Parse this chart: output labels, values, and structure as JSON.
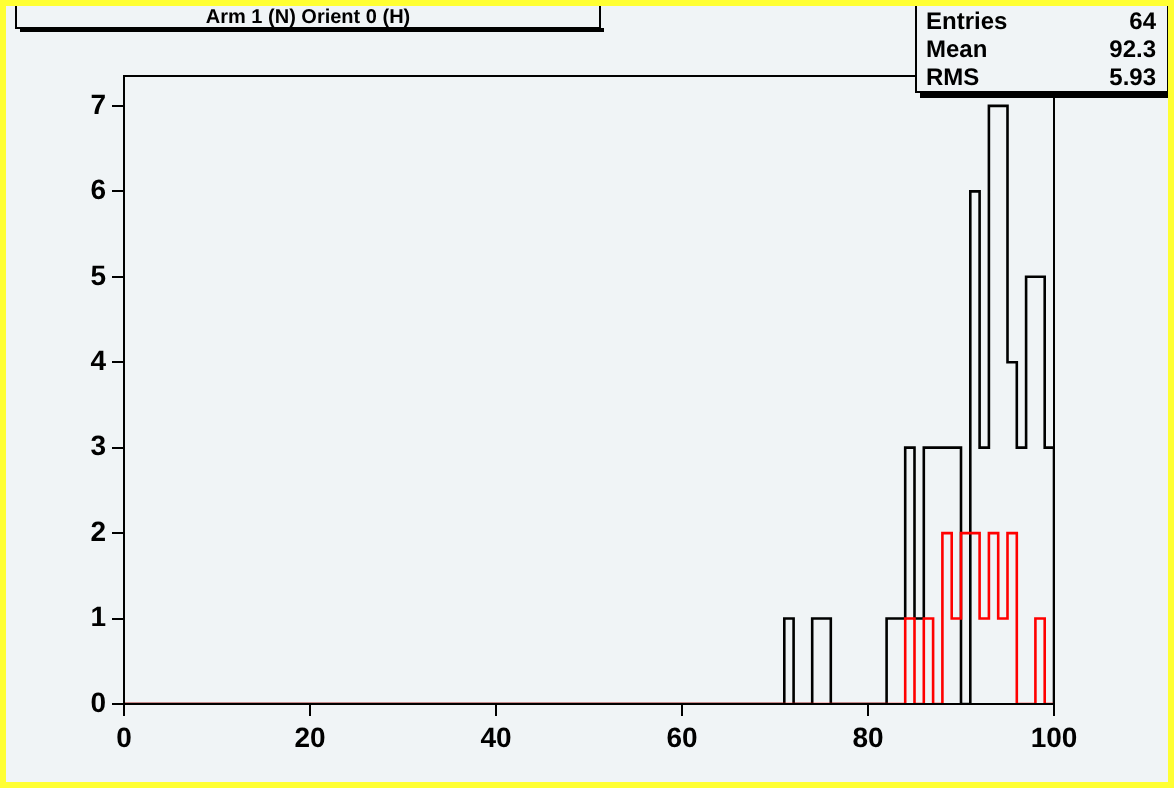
{
  "chart_data": {
    "type": "histogram",
    "title": "Arm 1 (N) Orient 0 (H)",
    "annotations": [
      "Entries 64",
      "Mean 92.3",
      "RMS 5.93"
    ],
    "bins": [
      0,
      1,
      2,
      3,
      4,
      5,
      6,
      7,
      8,
      9,
      10,
      11,
      12,
      13,
      14,
      15,
      16,
      17,
      18,
      19,
      20,
      21,
      22,
      23,
      24,
      25,
      26,
      27,
      28,
      29,
      30,
      31,
      32,
      33,
      34,
      35,
      36,
      37,
      38,
      39,
      40,
      41,
      42,
      43,
      44,
      45,
      46,
      47,
      48,
      49,
      50,
      51,
      52,
      53,
      54,
      55,
      56,
      57,
      58,
      59,
      60,
      61,
      62,
      63,
      64,
      65,
      66,
      67,
      68,
      69,
      70,
      71,
      72,
      73,
      74,
      75,
      76,
      77,
      78,
      79,
      80,
      81,
      82,
      83,
      84,
      85,
      86,
      87,
      88,
      89,
      90,
      91,
      92,
      93,
      94,
      95,
      96,
      97,
      98,
      99,
      100
    ],
    "series": [
      {
        "color": "#000000",
        "values": [
          0,
          0,
          0,
          0,
          0,
          0,
          0,
          0,
          0,
          0,
          0,
          0,
          0,
          0,
          0,
          0,
          0,
          0,
          0,
          0,
          0,
          0,
          0,
          0,
          0,
          0,
          0,
          0,
          0,
          0,
          0,
          0,
          0,
          0,
          0,
          0,
          0,
          0,
          0,
          0,
          0,
          0,
          0,
          0,
          0,
          0,
          0,
          0,
          0,
          0,
          0,
          0,
          0,
          0,
          0,
          0,
          0,
          0,
          0,
          0,
          0,
          0,
          0,
          0,
          0,
          0,
          0,
          0,
          0,
          0,
          0,
          1,
          0,
          0,
          1,
          1,
          0,
          0,
          0,
          0,
          0,
          0,
          1,
          1,
          3,
          1,
          3,
          3,
          3,
          3,
          0,
          6,
          3,
          7,
          7,
          4,
          3,
          5,
          5,
          3
        ]
      },
      {
        "color": "#ff0000",
        "values": [
          0,
          0,
          0,
          0,
          0,
          0,
          0,
          0,
          0,
          0,
          0,
          0,
          0,
          0,
          0,
          0,
          0,
          0,
          0,
          0,
          0,
          0,
          0,
          0,
          0,
          0,
          0,
          0,
          0,
          0,
          0,
          0,
          0,
          0,
          0,
          0,
          0,
          0,
          0,
          0,
          0,
          0,
          0,
          0,
          0,
          0,
          0,
          0,
          0,
          0,
          0,
          0,
          0,
          0,
          0,
          0,
          0,
          0,
          0,
          0,
          0,
          0,
          0,
          0,
          0,
          0,
          0,
          0,
          0,
          0,
          0,
          0,
          0,
          0,
          0,
          0,
          0,
          0,
          0,
          0,
          0,
          0,
          0,
          0,
          1,
          0,
          1,
          0,
          2,
          1,
          2,
          2,
          1,
          2,
          1,
          2,
          0,
          0,
          1,
          0
        ]
      }
    ],
    "xlim": [
      0,
      100
    ],
    "xticks": [
      0,
      20,
      40,
      60,
      80,
      100
    ],
    "ylim": [
      0,
      7.35
    ],
    "yticks": [
      0,
      1,
      2,
      3,
      4,
      5,
      6,
      7
    ]
  }
}
